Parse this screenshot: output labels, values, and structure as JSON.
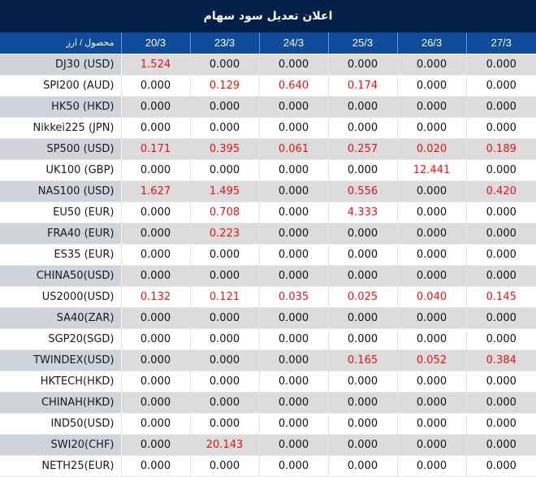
{
  "title": "اعلان تعدیل سود سهام",
  "colors": {
    "title_bg": "#03214a",
    "header_bg": "#0f4c9c",
    "highlight": "#f01010",
    "odd_row": "#dcdcdc",
    "odd_name": "#cfd3da"
  },
  "table": {
    "headers": [
      "محصول / ارز",
      "20/3",
      "23/3",
      "24/3",
      "25/3",
      "26/3",
      "27/3"
    ],
    "rows": [
      {
        "name": "DJ30 (USD)",
        "values": [
          "1.524",
          "0.000",
          "0.000",
          "0.000",
          "0.000",
          "0.000"
        ]
      },
      {
        "name": "SPI200 (AUD)",
        "values": [
          "0.000",
          "0.129",
          "0.640",
          "0.174",
          "0.000",
          "0.000"
        ]
      },
      {
        "name": "HK50 (HKD)",
        "values": [
          "0.000",
          "0.000",
          "0.000",
          "0.000",
          "0.000",
          "0.000"
        ]
      },
      {
        "name": "Nikkei225 (JPN)",
        "values": [
          "0.000",
          "0.000",
          "0.000",
          "0.000",
          "0.000",
          "0.000"
        ]
      },
      {
        "name": "SP500 (USD)",
        "values": [
          "0.171",
          "0.395",
          "0.061",
          "0.257",
          "0.020",
          "0.189"
        ]
      },
      {
        "name": "UK100 (GBP)",
        "values": [
          "0.000",
          "0.000",
          "0.000",
          "0.000",
          "12.441",
          "0.000"
        ]
      },
      {
        "name": "NAS100 (USD)",
        "values": [
          "1.627",
          "1.495",
          "0.000",
          "0.556",
          "0.000",
          "0.420"
        ]
      },
      {
        "name": "EU50 (EUR)",
        "values": [
          "0.000",
          "0.708",
          "0.000",
          "4.333",
          "0.000",
          "0.000"
        ]
      },
      {
        "name": "FRA40 (EUR)",
        "values": [
          "0.000",
          "0.223",
          "0.000",
          "0.000",
          "0.000",
          "0.000"
        ]
      },
      {
        "name": "ES35 (EUR)",
        "values": [
          "0.000",
          "0.000",
          "0.000",
          "0.000",
          "0.000",
          "0.000"
        ]
      },
      {
        "name": "CHINA50(USD)",
        "values": [
          "0.000",
          "0.000",
          "0.000",
          "0.000",
          "0.000",
          "0.000"
        ]
      },
      {
        "name": "US2000(USD)",
        "values": [
          "0.132",
          "0.121",
          "0.035",
          "0.025",
          "0.040",
          "0.145"
        ]
      },
      {
        "name": "SA40(ZAR)",
        "values": [
          "0.000",
          "0.000",
          "0.000",
          "0.000",
          "0.000",
          "0.000"
        ]
      },
      {
        "name": "SGP20(SGD)",
        "values": [
          "0.000",
          "0.000",
          "0.000",
          "0.000",
          "0.000",
          "0.000"
        ]
      },
      {
        "name": "TWINDEX(USD)",
        "values": [
          "0.000",
          "0.000",
          "0.000",
          "0.165",
          "0.052",
          "0.384"
        ]
      },
      {
        "name": "HKTECH(HKD)",
        "values": [
          "0.000",
          "0.000",
          "0.000",
          "0.000",
          "0.000",
          "0.000"
        ]
      },
      {
        "name": "CHINAH(HKD)",
        "values": [
          "0.000",
          "0.000",
          "0.000",
          "0.000",
          "0.000",
          "0.000"
        ]
      },
      {
        "name": "IND50(USD)",
        "values": [
          "0.000",
          "0.000",
          "0.000",
          "0.000",
          "0.000",
          "0.000"
        ]
      },
      {
        "name": "SWI20(CHF)",
        "values": [
          "0.000",
          "20.143",
          "0.000",
          "0.000",
          "0.000",
          "0.000"
        ]
      },
      {
        "name": "NETH25(EUR)",
        "values": [
          "0.000",
          "0.000",
          "0.000",
          "0.000",
          "0.000",
          "0.000"
        ]
      }
    ]
  }
}
